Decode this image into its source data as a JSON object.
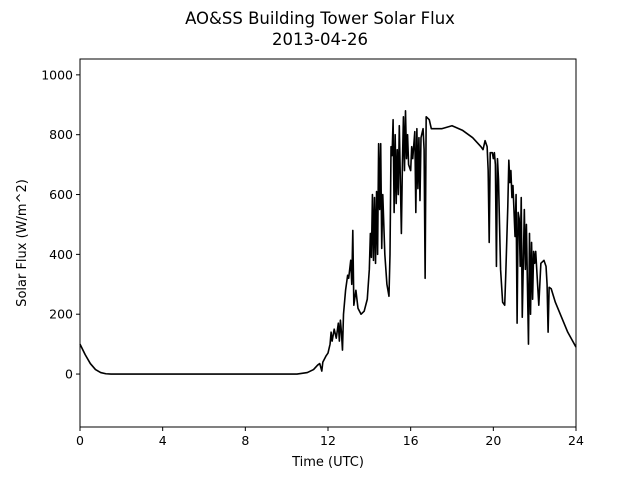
{
  "chart_data": {
    "type": "line",
    "title": "AO&SS Building Tower Solar Flux",
    "subtitle": "2013-04-26",
    "x_label": "Time (UTC)",
    "y_label": "Solar Flux (W/m^2)",
    "xlim": [
      0,
      24
    ],
    "xticks": [
      0,
      4,
      8,
      12,
      16,
      20,
      24
    ],
    "ylim": [
      -177,
      1053
    ],
    "yticks": [
      0,
      200,
      400,
      600,
      800,
      1000
    ],
    "series": [
      {
        "name": "Solar Flux",
        "color": "#000000",
        "x": [
          0,
          0.25,
          0.5,
          0.75,
          1.0,
          1.25,
          1.5,
          10.5,
          11,
          11.3,
          11.5,
          11.6,
          11.7,
          11.75,
          11.9,
          12.0,
          12.1,
          12.15,
          12.2,
          12.3,
          12.4,
          12.5,
          12.55,
          12.6,
          12.65,
          12.7,
          12.75,
          12.85,
          12.95,
          13.0,
          13.1,
          13.15,
          13.2,
          13.25,
          13.35,
          13.45,
          13.6,
          13.75,
          13.9,
          14.0,
          14.05,
          14.1,
          14.15,
          14.2,
          14.25,
          14.3,
          14.35,
          14.4,
          14.45,
          14.5,
          14.55,
          14.6,
          14.65,
          14.75,
          14.85,
          14.95,
          15.0,
          15.05,
          15.1,
          15.15,
          15.2,
          15.25,
          15.3,
          15.35,
          15.4,
          15.45,
          15.5,
          15.55,
          15.6,
          15.65,
          15.7,
          15.75,
          15.8,
          15.85,
          15.9,
          16.0,
          16.05,
          16.1,
          16.2,
          16.25,
          16.3,
          16.35,
          16.4,
          16.45,
          16.5,
          16.6,
          16.65,
          16.7,
          16.75,
          16.9,
          17.0,
          17.5,
          18.0,
          18.5,
          19.0,
          19.4,
          19.5,
          19.6,
          19.7,
          19.75,
          19.8,
          19.85,
          19.95,
          20.0,
          20.05,
          20.1,
          20.15,
          20.2,
          20.25,
          20.3,
          20.35,
          20.45,
          20.55,
          20.6,
          20.7,
          20.75,
          20.8,
          20.85,
          20.9,
          20.95,
          21.05,
          21.1,
          21.15,
          21.2,
          21.25,
          21.3,
          21.35,
          21.4,
          21.5,
          21.55,
          21.6,
          21.65,
          21.7,
          21.75,
          21.8,
          21.85,
          21.9,
          21.95,
          22.0,
          22.05,
          22.1,
          22.2,
          22.3,
          22.45,
          22.55,
          22.6,
          22.65,
          22.7,
          22.8,
          23.0,
          23.3,
          23.6,
          24.0
        ],
        "values": [
          100,
          65,
          35,
          15,
          5,
          1,
          0,
          0,
          5,
          15,
          30,
          35,
          10,
          40,
          60,
          70,
          100,
          140,
          110,
          150,
          120,
          170,
          110,
          180,
          140,
          80,
          200,
          280,
          330,
          320,
          380,
          300,
          480,
          230,
          280,
          220,
          200,
          210,
          250,
          350,
          470,
          390,
          600,
          380,
          590,
          370,
          610,
          400,
          770,
          550,
          770,
          420,
          600,
          400,
          300,
          260,
          400,
          760,
          730,
          850,
          540,
          800,
          570,
          750,
          600,
          830,
          650,
          470,
          700,
          860,
          680,
          880,
          720,
          800,
          700,
          680,
          760,
          720,
          810,
          540,
          820,
          620,
          790,
          580,
          790,
          820,
          750,
          320,
          860,
          850,
          820,
          820,
          830,
          815,
          790,
          760,
          750,
          780,
          760,
          680,
          440,
          740,
          740,
          720,
          740,
          700,
          360,
          720,
          650,
          500,
          350,
          240,
          230,
          330,
          560,
          715,
          640,
          680,
          590,
          630,
          460,
          600,
          170,
          540,
          520,
          360,
          590,
          190,
          550,
          350,
          500,
          300,
          100,
          470,
          200,
          440,
          250,
          410,
          370,
          410,
          350,
          230,
          370,
          380,
          360,
          300,
          140,
          290,
          285,
          240,
          190,
          140,
          90
        ]
      }
    ]
  }
}
